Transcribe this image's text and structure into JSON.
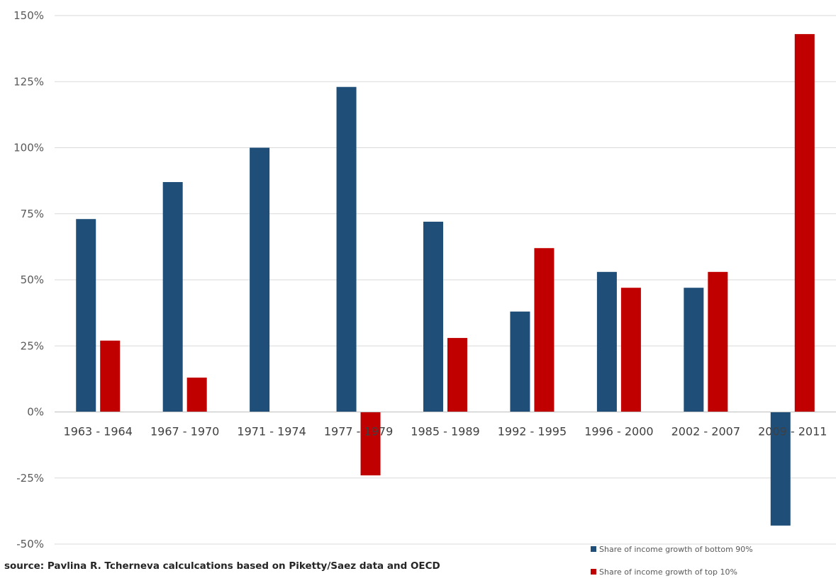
{
  "chart_data": {
    "type": "bar",
    "categories": [
      "1963 - 1964",
      "1967 - 1970",
      "1971 - 1974",
      "1977 - 1979",
      "1985 - 1989",
      "1992 - 1995",
      "1996 - 2000",
      "2002 - 2007",
      "2009 - 2011"
    ],
    "series": [
      {
        "name": "Share of income growth of bottom 90%",
        "color": "#1F4E79",
        "values": [
          73,
          87,
          100,
          123,
          72,
          38,
          53,
          47,
          -43
        ]
      },
      {
        "name": "Share of income growth of top 10%",
        "color": "#C00000",
        "values": [
          27,
          13,
          0,
          -24,
          28,
          62,
          47,
          53,
          143
        ]
      }
    ],
    "ylim": [
      -50,
      150
    ],
    "yticks": [
      150,
      125,
      100,
      75,
      50,
      25,
      0,
      -25,
      -50
    ],
    "ytick_labels": [
      "150%",
      "125%",
      "100%",
      "75%",
      "50%",
      "25%",
      "0%",
      "-25%",
      "-50%"
    ],
    "grid": true,
    "legend_position": "bottom-right",
    "source": "source: Pavlina R. Tcherneva calculcations based on Piketty/Saez data and OECD"
  }
}
